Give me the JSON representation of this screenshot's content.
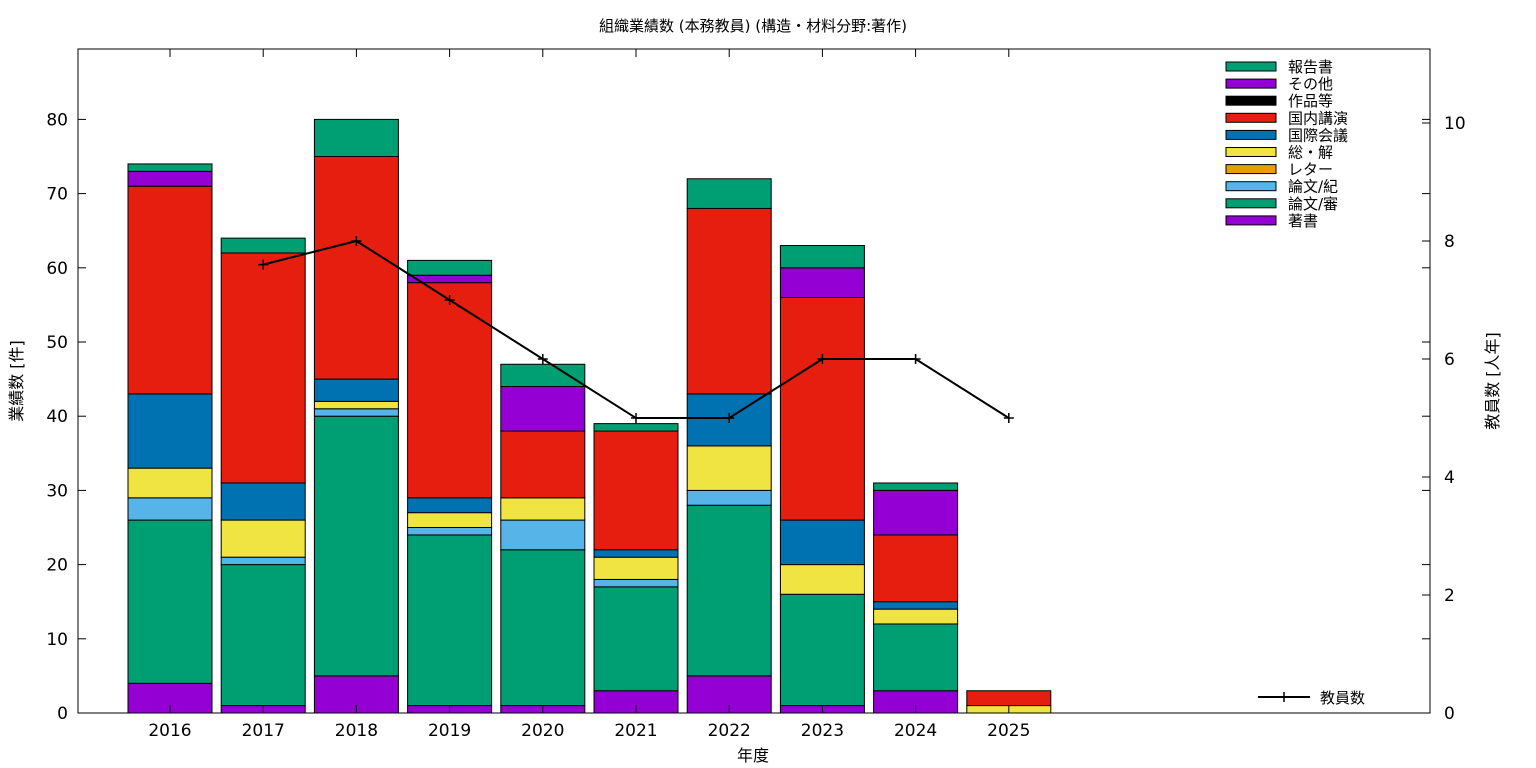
{
  "chart_data": {
    "type": "bar",
    "stacked": true,
    "title": "組織業績数 (本務教員) (構造・材料分野:著作)",
    "xlabel": "年度",
    "ylabel": "業績数 [件]",
    "y2label": "教員数 [人年]",
    "categories": [
      "2016",
      "2017",
      "2018",
      "2019",
      "2020",
      "2021",
      "2022",
      "2023",
      "2024",
      "2025"
    ],
    "ylim": [
      0,
      90
    ],
    "y2lim": [
      0,
      11.25
    ],
    "yticks": [
      0,
      10,
      20,
      30,
      40,
      50,
      60,
      70,
      80
    ],
    "y2ticks": [
      0,
      2,
      4,
      6,
      8,
      10
    ],
    "grid": false,
    "legend_position": "top-right",
    "series": [
      {
        "name": "著書",
        "color": "#9400D3",
        "values": [
          4,
          1,
          5,
          1,
          1,
          3,
          5,
          1,
          3,
          0
        ]
      },
      {
        "name": "論文/審",
        "color": "#009E73",
        "values": [
          22,
          19,
          35,
          23,
          21,
          14,
          23,
          15,
          9,
          0
        ]
      },
      {
        "name": "論文/紀",
        "color": "#56B4E9",
        "values": [
          3,
          1,
          1,
          1,
          4,
          1,
          2,
          0,
          0,
          0
        ]
      },
      {
        "name": "レター",
        "color": "#E69F00",
        "values": [
          0,
          0,
          0,
          0,
          0,
          0,
          0,
          0,
          0,
          0
        ]
      },
      {
        "name": "総・解",
        "color": "#F0E442",
        "values": [
          4,
          5,
          1,
          2,
          3,
          3,
          6,
          4,
          2,
          1
        ]
      },
      {
        "name": "国際会議",
        "color": "#0072B2",
        "values": [
          10,
          5,
          3,
          2,
          0,
          1,
          7,
          6,
          1,
          0
        ]
      },
      {
        "name": "国内講演",
        "color": "#E51E10",
        "values": [
          28,
          31,
          30,
          29,
          9,
          16,
          25,
          30,
          9,
          2
        ]
      },
      {
        "name": "作品等",
        "color": "#000000",
        "values": [
          0,
          0,
          0,
          0,
          0,
          0,
          0,
          0,
          0,
          0
        ]
      },
      {
        "name": "その他",
        "color": "#9400D3",
        "values": [
          2,
          0,
          0,
          1,
          6,
          0,
          0,
          4,
          6,
          0
        ]
      },
      {
        "name": "報告書",
        "color": "#009E73",
        "values": [
          1,
          2,
          5,
          2,
          3,
          1,
          4,
          3,
          1,
          0
        ]
      }
    ],
    "line_series": {
      "name": "教員数",
      "axis": "y2",
      "color": "#000000",
      "x": [
        "2017",
        "2018",
        "2019",
        "2020",
        "2021",
        "2022",
        "2023",
        "2024",
        "2025"
      ],
      "values": [
        7.6,
        8,
        7,
        6,
        5,
        5,
        6,
        6,
        5
      ]
    }
  }
}
